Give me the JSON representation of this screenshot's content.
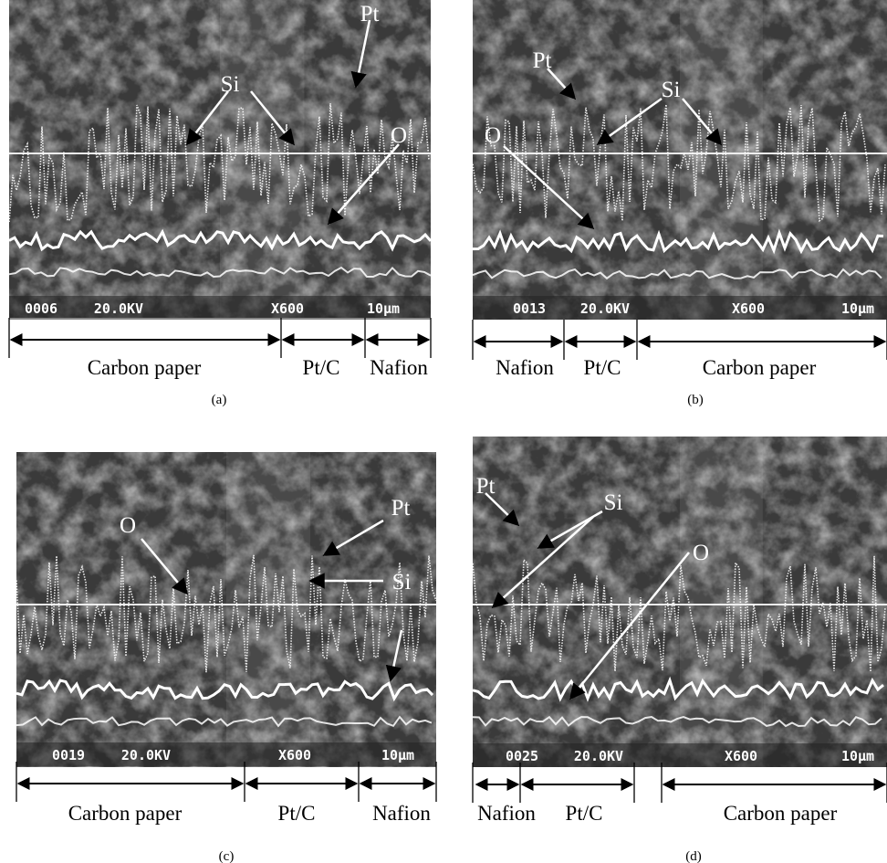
{
  "panels": [
    {
      "caption": "(a)",
      "image_info": [
        "0006",
        "20.0KV",
        "X600",
        "10µm"
      ],
      "elements": [
        "Pt",
        "Si",
        "O"
      ],
      "regions": [
        "Carbon paper",
        "Pt/C",
        "Nafion"
      ]
    },
    {
      "caption": "(b)",
      "image_info": [
        "0013",
        "20.0KV",
        "X600",
        "10µm"
      ],
      "elements": [
        "Pt",
        "Si",
        "O"
      ],
      "regions": [
        "Nafion",
        "Pt/C",
        "Carbon paper"
      ]
    },
    {
      "caption": "(c)",
      "image_info": [
        "0019",
        "20.0KV",
        "X600",
        "10µm"
      ],
      "elements": [
        "Pt",
        "Si",
        "O"
      ],
      "regions": [
        "Carbon paper",
        "Pt/C",
        "Nafion"
      ]
    },
    {
      "caption": "(d)",
      "image_info": [
        "0025",
        "20.0KV",
        "X600",
        "10µm"
      ],
      "elements": [
        "Pt",
        "Si",
        "O"
      ],
      "regions": [
        "Nafion",
        "Pt/C",
        "Carbon paper"
      ]
    }
  ]
}
